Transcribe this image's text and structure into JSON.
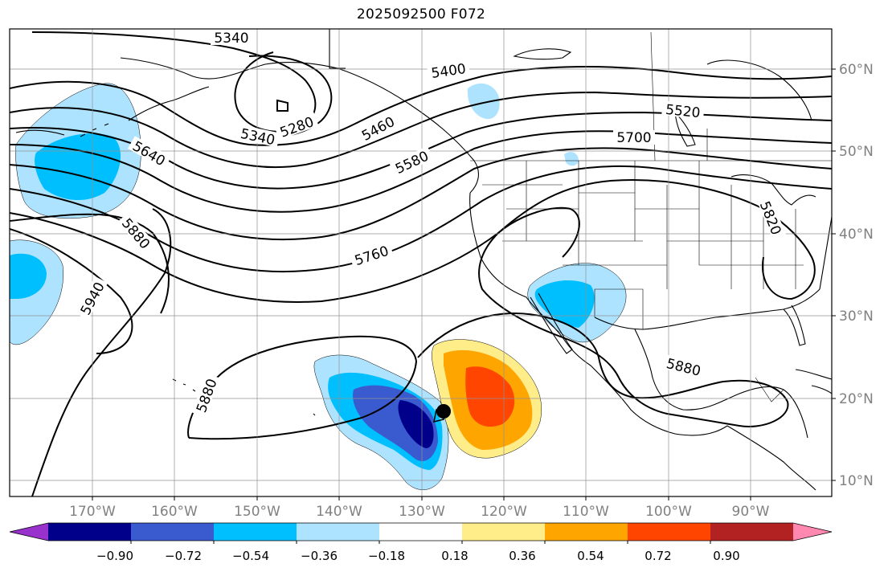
{
  "title": "2025092500 F072",
  "map": {
    "latitude_labels": [
      "60°N",
      "50°N",
      "40°N",
      "30°N",
      "20°N",
      "10°N"
    ],
    "longitude_labels": [
      "170°W",
      "160°W",
      "150°W",
      "140°W",
      "130°W",
      "120°W",
      "110°W",
      "100°W",
      "90°W"
    ],
    "contour_labels": [
      "5340",
      "5340",
      "5280",
      "5400",
      "5460",
      "5520",
      "5580",
      "5640",
      "5700",
      "5760",
      "5820",
      "5880",
      "5880",
      "5880",
      "5940"
    ],
    "storm_marker": "black-dot"
  },
  "colorbar": {
    "tick_labels": [
      "−0.90",
      "−0.72",
      "−0.54",
      "−0.36",
      "−0.18",
      "0.18",
      "0.36",
      "0.54",
      "0.72",
      "0.90"
    ],
    "colors": [
      "#9932cc",
      "#00008b",
      "#3a5bd0",
      "#00bfff",
      "#ade3ff",
      "#ffffff",
      "#ffed8a",
      "#ffa500",
      "#ff4500",
      "#b22222",
      "#ff88b0"
    ]
  }
}
